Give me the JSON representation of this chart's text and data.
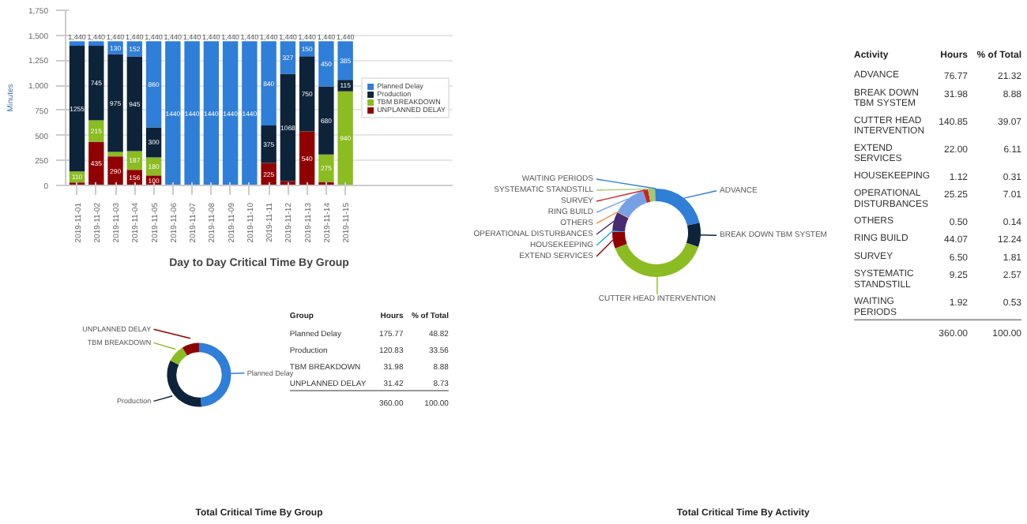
{
  "chart_data": [
    {
      "type": "bar",
      "stacked": true,
      "title": "Day to Day Critical Time By Group",
      "ylabel": "Minutes",
      "categories": [
        "2019-11-01",
        "2019-11-02",
        "2019-11-03",
        "2019-11-04",
        "2019-11-05",
        "2019-11-06",
        "2019-11-07",
        "2019-11-08",
        "2019-11-09",
        "2019-11-10",
        "2019-11-11",
        "2019-11-12",
        "2019-11-13",
        "2019-11-14",
        "2019-11-15"
      ],
      "series": [
        {
          "name": "UNPLANNED DELAY",
          "color": "#910000",
          "values": [
            30,
            435,
            290,
            156,
            100,
            null,
            null,
            null,
            null,
            null,
            225,
            45,
            540,
            35,
            null
          ],
          "value_labels": [
            null,
            "435",
            "290",
            "156",
            "100",
            null,
            null,
            null,
            null,
            null,
            "225",
            null,
            "540",
            null,
            null
          ]
        },
        {
          "name": "TBM BREAKDOWN",
          "color": "#8bbc21",
          "values": [
            110,
            215,
            45,
            187,
            180,
            null,
            null,
            null,
            null,
            null,
            null,
            null,
            null,
            275,
            940
          ],
          "value_labels": [
            "110",
            "215",
            null,
            "187",
            "180",
            null,
            null,
            null,
            null,
            null,
            null,
            null,
            null,
            "275",
            "940"
          ]
        },
        {
          "name": "Production",
          "color": "#0d233a",
          "values": [
            1255,
            745,
            975,
            945,
            300,
            null,
            null,
            null,
            null,
            null,
            375,
            1068,
            750,
            680,
            115
          ],
          "value_labels": [
            "1255",
            "745",
            "975",
            "945",
            "300",
            null,
            null,
            null,
            null,
            null,
            "375",
            "1068",
            "750",
            "680",
            "115"
          ]
        },
        {
          "name": "Planned Delay",
          "color": "#2f7ed8",
          "values": [
            45,
            45,
            130,
            152,
            860,
            1440,
            1440,
            1440,
            1440,
            1440,
            840,
            327,
            150,
            450,
            385
          ],
          "value_labels": [
            null,
            null,
            "130",
            "152",
            "860",
            "1440",
            "1440",
            "1440",
            "1440",
            "1440",
            "840",
            "327",
            "150",
            "450",
            "385"
          ]
        }
      ],
      "totals": [
        "1,440",
        "1,440",
        "1,440",
        "1,440",
        "1,440",
        "1,440",
        "1,440",
        "1,440",
        "1,440",
        "1,440",
        "1,440",
        "1,440",
        "1,440",
        "1,440",
        "1,440"
      ],
      "ylim": [
        0,
        1750
      ],
      "yticks": [
        0,
        250,
        500,
        750,
        {
          "value": 1000,
          "label": "1,000"
        },
        {
          "value": 1250,
          "label": "1,250"
        },
        {
          "value": 1500,
          "label": "1,500"
        },
        {
          "value": 1750,
          "label": "1,750"
        }
      ],
      "grid": "y",
      "legend": "right"
    },
    {
      "type": "donut",
      "title": "Total Critical Time By Group",
      "categories": [
        "Planned Delay",
        "Production",
        "TBM BREAKDOWN",
        "UNPLANNED DELAY"
      ],
      "values": [
        48.82,
        33.56,
        8.88,
        8.73
      ],
      "colors": [
        "#2f7ed8",
        "#0d233a",
        "#8bbc21",
        "#910000"
      ],
      "annotations": [
        "Group",
        "Hours",
        "% of Total",
        "175.77",
        "120.83",
        "31.98",
        "31.42",
        "48.82",
        "33.56",
        "8.88",
        "8.73",
        "360.00",
        "100.00"
      ]
    },
    {
      "type": "donut",
      "title": "Total Critical Time By Activity",
      "categories": [
        "ADVANCE",
        "BREAK DOWN TBM SYSTEM",
        "CUTTER HEAD INTERVENTION",
        "EXTEND SERVICES",
        "HOUSEKEEPING",
        "OPERATIONAL DISTURBANCES",
        "OTHERS",
        "RING BUILD",
        "SURVEY",
        "SYSTEMATIC STANDSTILL",
        "WAITING PERIODS"
      ],
      "values": [
        21.32,
        8.88,
        39.07,
        6.11,
        0.31,
        7.01,
        0.14,
        12.24,
        1.81,
        2.57,
        0.53
      ],
      "colors": [
        "#2f7ed8",
        "#0d233a",
        "#8bbc21",
        "#910000",
        "#1aadce",
        "#492970",
        "#f28f43",
        "#77a1e5",
        "#c42525",
        "#a6c96a",
        "#2f7ed8"
      ],
      "annotations": [
        "Activity",
        "Hours",
        "% of Total",
        "76.77",
        "31.98",
        "140.85",
        "22.00",
        "1.12",
        "25.25",
        "0.50",
        "44.07",
        "6.50",
        "9.25",
        "1.92",
        "21.32",
        "8.88",
        "39.07",
        "6.11",
        "0.31",
        "7.01",
        "0.14",
        "12.24",
        "1.81",
        "2.57",
        "0.53",
        "360.00",
        "100.00"
      ]
    }
  ]
}
